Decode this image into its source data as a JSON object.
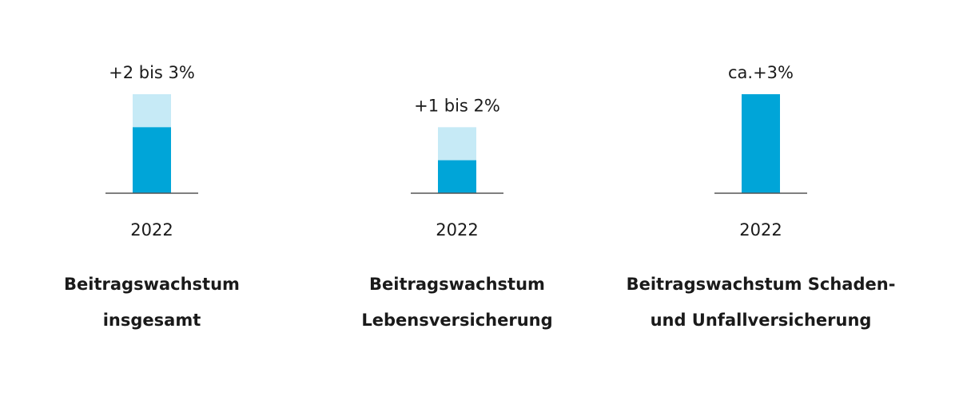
{
  "chart_data": [
    {
      "type": "range-bar",
      "title": [
        "Beitragswachstum",
        "insgesamt"
      ],
      "categories": [
        "2022"
      ],
      "low": [
        2
      ],
      "high": [
        3
      ],
      "value_labels": [
        "+2 bis 3%"
      ],
      "ylim": [
        0,
        3
      ],
      "color": "#00a5d8",
      "range_color": "#c6eaf6"
    },
    {
      "type": "range-bar",
      "title": [
        "Beitragswachstum",
        "Lebensversicherung"
      ],
      "categories": [
        "2022"
      ],
      "low": [
        1
      ],
      "high": [
        2
      ],
      "value_labels": [
        "+1 bis 2%"
      ],
      "ylim": [
        0,
        3
      ],
      "color": "#00a5d8",
      "range_color": "#c6eaf6"
    },
    {
      "type": "range-bar",
      "title": [
        "Beitragswachstum Schaden-",
        "und Unfallversicherung"
      ],
      "categories": [
        "2022"
      ],
      "low": [
        3
      ],
      "high": [
        null
      ],
      "value_labels": [
        "ca.+3%"
      ],
      "ylim": [
        0,
        3
      ],
      "color": "#00a5d8",
      "range_color": "#c6eaf6"
    }
  ]
}
